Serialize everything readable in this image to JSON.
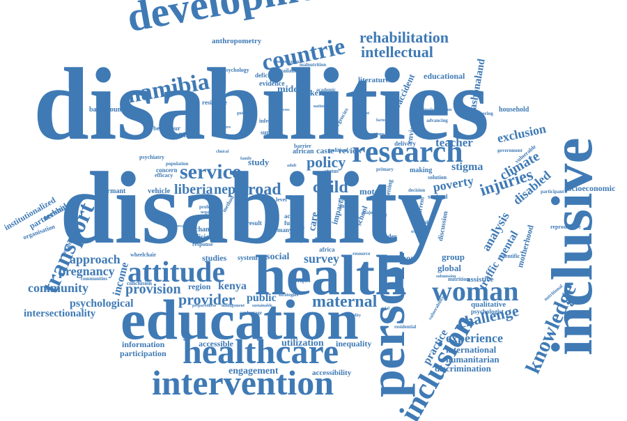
{
  "cloud": {
    "color": "#3f7ab5",
    "words": [
      {
        "id": "disabilities",
        "text": "disabilities"
      },
      {
        "id": "disability",
        "text": "disability"
      },
      {
        "id": "education",
        "text": "education"
      },
      {
        "id": "development",
        "text": "development"
      },
      {
        "id": "health",
        "text": "health"
      },
      {
        "id": "inclusive",
        "text": "inclusive"
      },
      {
        "id": "person",
        "text": "person"
      },
      {
        "id": "healthcare",
        "text": "healthcare"
      },
      {
        "id": "intervention",
        "text": "intervention"
      },
      {
        "id": "research",
        "text": "research"
      },
      {
        "id": "attitude",
        "text": "attitude"
      },
      {
        "id": "inclusion",
        "text": "inclusion"
      },
      {
        "id": "woman",
        "text": "woman"
      },
      {
        "id": "namibia",
        "text": "namibia"
      },
      {
        "id": "countrie",
        "text": "countrie"
      },
      {
        "id": "service",
        "text": "service"
      },
      {
        "id": "transport",
        "text": "transport"
      },
      {
        "id": "knowledge",
        "text": "knowledge"
      },
      {
        "id": "rehabilitation",
        "text": "rehabilitation"
      },
      {
        "id": "intellectual",
        "text": "intellectual"
      },
      {
        "id": "road",
        "text": "road"
      },
      {
        "id": "child",
        "text": "child"
      },
      {
        "id": "liberia",
        "text": "liberia"
      },
      {
        "id": "nepal",
        "text": "nepal"
      },
      {
        "id": "policy",
        "text": "policy"
      },
      {
        "id": "injuries",
        "text": "injuries"
      },
      {
        "id": "maternal",
        "text": "maternal"
      },
      {
        "id": "provider",
        "text": "provider"
      },
      {
        "id": "provision",
        "text": "provision"
      },
      {
        "id": "kenya",
        "text": "kenya"
      },
      {
        "id": "survey",
        "text": "survey"
      },
      {
        "id": "challenge",
        "text": "challenge"
      },
      {
        "id": "experience",
        "text": "experience"
      },
      {
        "id": "approach",
        "text": "approach"
      },
      {
        "id": "pregnancy",
        "text": "pregnancy"
      },
      {
        "id": "community",
        "text": "community"
      },
      {
        "id": "psychological",
        "text": "psychological"
      },
      {
        "id": "intersectionality",
        "text": "intersectionality"
      },
      {
        "id": "exclusion",
        "text": "exclusion"
      },
      {
        "id": "climate",
        "text": "climate"
      },
      {
        "id": "teacher",
        "text": "teacher"
      },
      {
        "id": "disabled",
        "text": "disabled"
      },
      {
        "id": "stigma",
        "text": "stigma"
      },
      {
        "id": "poverty",
        "text": "poverty"
      },
      {
        "id": "analysis",
        "text": "analysis"
      },
      {
        "id": "traffic",
        "text": "traffic"
      },
      {
        "id": "mental",
        "text": "mental"
      },
      {
        "id": "mashonaland",
        "text": "mashonaland"
      },
      {
        "id": "environmental",
        "text": "environmental"
      },
      {
        "id": "accident",
        "text": "accident"
      },
      {
        "id": "educational",
        "text": "educational"
      },
      {
        "id": "literature",
        "text": "literature"
      },
      {
        "id": "anthropometry",
        "text": "anthropometry"
      },
      {
        "id": "engagement",
        "text": "engagement"
      },
      {
        "id": "accessibility",
        "text": "accessibility"
      },
      {
        "id": "utilization",
        "text": "utilization"
      },
      {
        "id": "inequality",
        "text": "inequality"
      },
      {
        "id": "accessible",
        "text": "accessible"
      },
      {
        "id": "information",
        "text": "information"
      },
      {
        "id": "participation",
        "text": "participation"
      },
      {
        "id": "international",
        "text": "international"
      },
      {
        "id": "humanitarian",
        "text": "humanitarian"
      },
      {
        "id": "discrimination",
        "text": "discrimination"
      },
      {
        "id": "practice",
        "text": "practice"
      },
      {
        "id": "qualitative",
        "text": "qualitative"
      },
      {
        "id": "global",
        "text": "global"
      },
      {
        "id": "group",
        "text": "group"
      },
      {
        "id": "assistive",
        "text": "assistive"
      },
      {
        "id": "motherhood",
        "text": "motherhood"
      },
      {
        "id": "socioeconomic",
        "text": "socioeconomic"
      },
      {
        "id": "household",
        "text": "household"
      },
      {
        "id": "income",
        "text": "income"
      },
      {
        "id": "region",
        "text": "region"
      },
      {
        "id": "public",
        "text": "public"
      },
      {
        "id": "study",
        "text": "study"
      },
      {
        "id": "caste",
        "text": "caste"
      },
      {
        "id": "review",
        "text": "review"
      },
      {
        "id": "technology",
        "text": "technology"
      },
      {
        "id": "institutionalized",
        "text": "institutionalized"
      },
      {
        "id": "partnership",
        "text": "partnership"
      },
      {
        "id": "organisation",
        "text": "organisation"
      },
      {
        "id": "informant",
        "text": "informant"
      },
      {
        "id": "vehicle",
        "text": "vehicle"
      },
      {
        "id": "background",
        "text": "background"
      },
      {
        "id": "behaviour",
        "text": "behaviour"
      },
      {
        "id": "childbirth",
        "text": "childbirth"
      },
      {
        "id": "psychiatry",
        "text": "psychiatry"
      },
      {
        "id": "middle",
        "text": "middle"
      },
      {
        "id": "worker",
        "text": "worker"
      },
      {
        "id": "evidence",
        "text": "evidence"
      },
      {
        "id": "deficiency",
        "text": "deficiency"
      },
      {
        "id": "resilience",
        "text": "resilience"
      },
      {
        "id": "psychology",
        "text": "psychology"
      },
      {
        "id": "availability",
        "text": "availability"
      },
      {
        "id": "malnutrition",
        "text": "malnutrition"
      },
      {
        "id": "academic",
        "text": "academic"
      },
      {
        "id": "emergencies",
        "text": "emergencies"
      },
      {
        "id": "african",
        "text": "african"
      },
      {
        "id": "political",
        "text": "political"
      },
      {
        "id": "delivery",
        "text": "delivery"
      },
      {
        "id": "making",
        "text": "making"
      },
      {
        "id": "solution",
        "text": "solution"
      },
      {
        "id": "decision",
        "text": "decision"
      },
      {
        "id": "societal",
        "text": "societal"
      },
      {
        "id": "current",
        "text": "current"
      },
      {
        "id": "discussion",
        "text": "discussion"
      },
      {
        "id": "scientific",
        "text": "scientific"
      },
      {
        "id": "nutritional",
        "text": "nutritional"
      },
      {
        "id": "psychologist",
        "text": "psychologist"
      },
      {
        "id": "nutrition",
        "text": "nutrition"
      },
      {
        "id": "vulnerability",
        "text": "vulnerability"
      },
      {
        "id": "reproductive",
        "text": "reproductive"
      },
      {
        "id": "participant",
        "text": "participant"
      },
      {
        "id": "government",
        "text": "government"
      },
      {
        "id": "pioneering",
        "text": "pioneering"
      },
      {
        "id": "implementation",
        "text": "implementation"
      },
      {
        "id": "advancing",
        "text": "advancing"
      },
      {
        "id": "vulnerable",
        "text": "vulnerable"
      },
      {
        "id": "studies",
        "text": "studies"
      },
      {
        "id": "system",
        "text": "system"
      },
      {
        "id": "social",
        "text": "social"
      },
      {
        "id": "report",
        "text": "report"
      },
      {
        "id": "policies",
        "text": "policies"
      },
      {
        "id": "response",
        "text": "response"
      },
      {
        "id": "change",
        "text": "change"
      },
      {
        "id": "conclusion",
        "text": "conclusion"
      },
      {
        "id": "wheelchair",
        "text": "wheelchair"
      },
      {
        "id": "communities",
        "text": "communities"
      },
      {
        "id": "attainment",
        "text": "attainment"
      },
      {
        "id": "efficacy",
        "text": "efficacy"
      },
      {
        "id": "concern",
        "text": "concern"
      },
      {
        "id": "population",
        "text": "population"
      },
      {
        "id": "support",
        "text": "support"
      },
      {
        "id": "infectious",
        "text": "infectious"
      },
      {
        "id": "barrier",
        "text": "barrier"
      },
      {
        "id": "motor",
        "text": "motor"
      },
      {
        "id": "setting",
        "text": "setting"
      },
      {
        "id": "impact",
        "text": "impact"
      },
      {
        "id": "care",
        "text": "care"
      },
      {
        "id": "school",
        "text": "school"
      },
      {
        "id": "finding",
        "text": "finding"
      },
      {
        "id": "gender",
        "text": "gender"
      },
      {
        "id": "level",
        "text": "level"
      },
      {
        "id": "method",
        "text": "method"
      },
      {
        "id": "result",
        "text": "result"
      },
      {
        "id": "right",
        "text": "right"
      },
      {
        "id": "human",
        "text": "human"
      },
      {
        "id": "acc",
        "text": "acc"
      },
      {
        "id": "fund",
        "text": "fund"
      },
      {
        "id": "more",
        "text": "more"
      },
      {
        "id": "lake",
        "text": "lake"
      },
      {
        "id": "africa",
        "text": "africa"
      },
      {
        "id": "living",
        "text": "living"
      },
      {
        "id": "resource",
        "text": "resource"
      },
      {
        "id": "strategies",
        "text": "strategies"
      },
      {
        "id": "therapies",
        "text": "therapies"
      },
      {
        "id": "orphanage",
        "text": "orphanage"
      },
      {
        "id": "sustainable",
        "text": "sustainable"
      },
      {
        "id": "residential",
        "text": "residential"
      },
      {
        "id": "preparedness",
        "text": "preparedness"
      },
      {
        "id": "management",
        "text": "management"
      },
      {
        "id": "submission",
        "text": "submission"
      },
      {
        "id": "status",
        "text": "status"
      },
      {
        "id": "primary",
        "text": "primary"
      },
      {
        "id": "transportation",
        "text": "transportation"
      },
      {
        "id": "major",
        "text": "major"
      },
      {
        "id": "many",
        "text": "many"
      },
      {
        "id": "general",
        "text": "general"
      },
      {
        "id": "tracking",
        "text": "tracking"
      },
      {
        "id": "problem",
        "text": "problem"
      },
      {
        "id": "negative",
        "text": "negative"
      },
      {
        "id": "prevalence",
        "text": "prevalence"
      },
      {
        "id": "national",
        "text": "national"
      },
      {
        "id": "guideline",
        "text": "guideline"
      },
      {
        "id": "clinical",
        "text": "clinical"
      },
      {
        "id": "cost",
        "text": "cost"
      },
      {
        "id": "quality",
        "text": "quality"
      },
      {
        "id": "factor",
        "text": "factor"
      },
      {
        "id": "access",
        "text": "access"
      },
      {
        "id": "needs",
        "text": "needs"
      },
      {
        "id": "trial",
        "text": "trial"
      },
      {
        "id": "outcome",
        "text": "outcome"
      },
      {
        "id": "barriers",
        "text": "barriers"
      },
      {
        "id": "youth",
        "text": "youth"
      },
      {
        "id": "family",
        "text": "family"
      },
      {
        "id": "adult",
        "text": "adult"
      }
    ]
  }
}
